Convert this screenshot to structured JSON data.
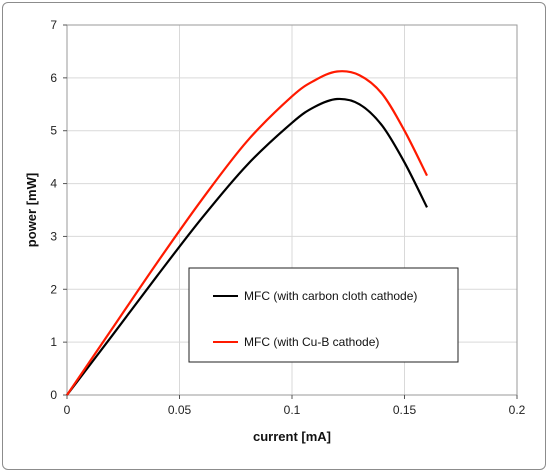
{
  "chart_data": {
    "type": "line",
    "xlabel": "current [mA]",
    "ylabel": "power [mW]",
    "xlim": [
      0,
      0.2
    ],
    "ylim": [
      0,
      7
    ],
    "xticks": [
      0,
      0.05,
      0.1,
      0.15,
      0.2
    ],
    "xtick_labels": [
      "0",
      "0.05",
      "0.1",
      "0.15",
      "0.2"
    ],
    "yticks": [
      0,
      1,
      2,
      3,
      4,
      5,
      6,
      7
    ],
    "ytick_labels": [
      "0",
      "1",
      "2",
      "3",
      "4",
      "5",
      "6",
      "7"
    ],
    "grid": true,
    "legend_position": "bottom-right inside plot",
    "series": [
      {
        "name": "MFC (with carbon cloth cathode)",
        "color": "#000000",
        "x": [
          0,
          0.02,
          0.04,
          0.06,
          0.08,
          0.1,
          0.11,
          0.12,
          0.13,
          0.14,
          0.15,
          0.16
        ],
        "y": [
          0,
          1.12,
          2.25,
          3.35,
          4.35,
          5.15,
          5.45,
          5.6,
          5.5,
          5.1,
          4.4,
          3.55
        ]
      },
      {
        "name": "MFC (with Cu-B cathode)",
        "color": "#ff1a00",
        "x": [
          0,
          0.02,
          0.04,
          0.06,
          0.08,
          0.1,
          0.11,
          0.12,
          0.13,
          0.14,
          0.15,
          0.16
        ],
        "y": [
          0,
          1.25,
          2.5,
          3.7,
          4.8,
          5.65,
          5.95,
          6.12,
          6.05,
          5.7,
          5.0,
          4.15
        ]
      }
    ]
  }
}
